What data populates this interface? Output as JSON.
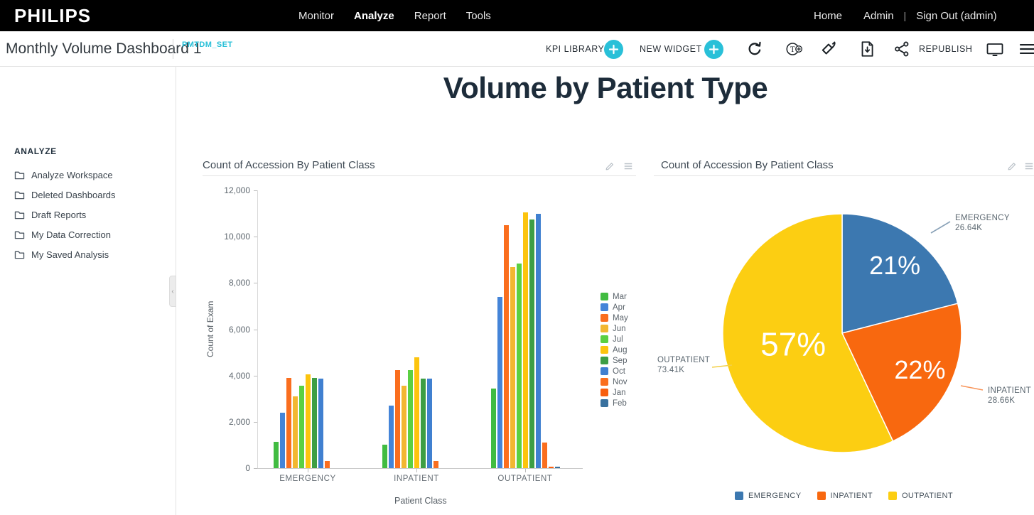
{
  "topbar": {
    "logo": "PHILIPS",
    "nav": [
      {
        "label": "Monitor",
        "active": false
      },
      {
        "label": "Analyze",
        "active": true
      },
      {
        "label": "Report",
        "active": false
      },
      {
        "label": "Tools",
        "active": false
      }
    ],
    "right": {
      "home": "Home",
      "admin": "Admin",
      "separator": "|",
      "sign_out": "Sign Out (admin)"
    }
  },
  "toolbar": {
    "dashboard_title": "Monthly Volume Dashboard 1",
    "dataset": "PMTDM_SET",
    "kpi_library_label": "KPI LIBRARY",
    "new_widget_label": "NEW WIDGET",
    "republish_label": "REPUBLISH",
    "accent_color": "#29c0d8",
    "icons": [
      "add-kpi-icon",
      "add-widget-icon",
      "refresh-icon",
      "add-text-icon",
      "fill-icon",
      "export-icon",
      "share-icon",
      "display-icon",
      "menu-icon"
    ]
  },
  "sidebar": {
    "section_title": "ANALYZE",
    "items": [
      {
        "label": "Analyze Workspace"
      },
      {
        "label": "Deleted Dashboards"
      },
      {
        "label": "Draft Reports"
      },
      {
        "label": "My Data Correction"
      },
      {
        "label": "My Saved Analysis"
      }
    ]
  },
  "main": {
    "title": "Volume by Patient Type"
  },
  "chart_data": [
    {
      "type": "bar",
      "widget_title": "Count of Accession By Patient Class",
      "xlabel": "Patient Class",
      "ylabel": "Count of Exam",
      "ylim": [
        0,
        12000
      ],
      "yticks": [
        0,
        2000,
        4000,
        6000,
        8000,
        10000,
        12000
      ],
      "ytick_labels": [
        "0",
        "2,000",
        "4,000",
        "6,000",
        "8,000",
        "10,000",
        "12,000"
      ],
      "categories": [
        "EMERGENCY",
        "INPATIENT",
        "OUTPATIENT"
      ],
      "series": [
        {
          "name": "Mar",
          "color": "#41bc41",
          "values": [
            1150,
            1000,
            3450
          ]
        },
        {
          "name": "Apr",
          "color": "#4484d8",
          "values": [
            2400,
            2700,
            7400
          ]
        },
        {
          "name": "May",
          "color": "#fa6e1e",
          "values": [
            3900,
            4250,
            10500
          ]
        },
        {
          "name": "Jun",
          "color": "#f2b731",
          "values": [
            3100,
            3550,
            8700
          ]
        },
        {
          "name": "Jul",
          "color": "#5bd042",
          "values": [
            3550,
            4250,
            8850
          ]
        },
        {
          "name": "Aug",
          "color": "#fcc40e",
          "values": [
            4050,
            4800,
            11050
          ]
        },
        {
          "name": "Sep",
          "color": "#3e9e44",
          "values": [
            3900,
            3880,
            10750
          ]
        },
        {
          "name": "Oct",
          "color": "#4080d0",
          "values": [
            3880,
            3880,
            11000
          ]
        },
        {
          "name": "Nov",
          "color": "#fa6e1e",
          "values": [
            300,
            320,
            1100
          ]
        },
        {
          "name": "Jan",
          "color": "#f85f10",
          "values": [
            0,
            0,
            50
          ]
        },
        {
          "name": "Feb",
          "color": "#39719e",
          "values": [
            0,
            0,
            60
          ]
        }
      ],
      "legend_position": "right",
      "grid": false
    },
    {
      "type": "pie",
      "widget_title": "Count of Accession By Patient Class",
      "slices": [
        {
          "label": "EMERGENCY",
          "value": 26640,
          "value_label": "26.64K",
          "percent": 21,
          "percent_label": "21%",
          "color": "#3c78b0"
        },
        {
          "label": "INPATIENT",
          "value": 28660,
          "value_label": "28.66K",
          "percent": 22,
          "percent_label": "22%",
          "color": "#f8680f"
        },
        {
          "label": "OUTPATIENT",
          "value": 73410,
          "value_label": "73.41K",
          "percent": 57,
          "percent_label": "57%",
          "color": "#fcce12"
        }
      ],
      "legend_position": "bottom"
    }
  ]
}
